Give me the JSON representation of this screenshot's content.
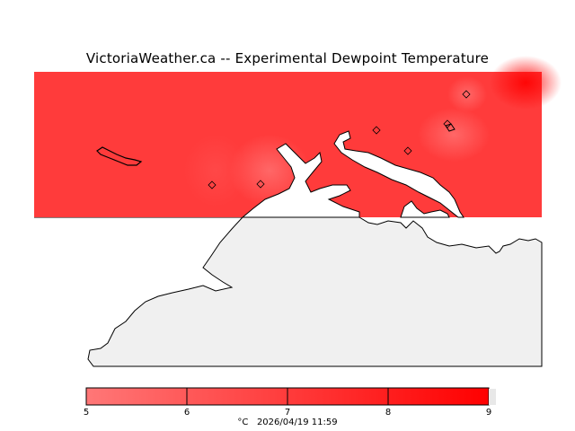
{
  "title": "VictoriaWeather.ca -- Experimental Dewpoint Temperature",
  "legend": {
    "ticks": [
      "5",
      "6",
      "7",
      "8",
      "9"
    ],
    "unit": "°C",
    "timestamp": "2026/04/19 11:59",
    "color_min": "#ff7777",
    "color_max": "#ff0000"
  },
  "colors": {
    "field": "#ff3b3b",
    "land_gray": "#f0f0f0",
    "coast": "#000000"
  }
}
